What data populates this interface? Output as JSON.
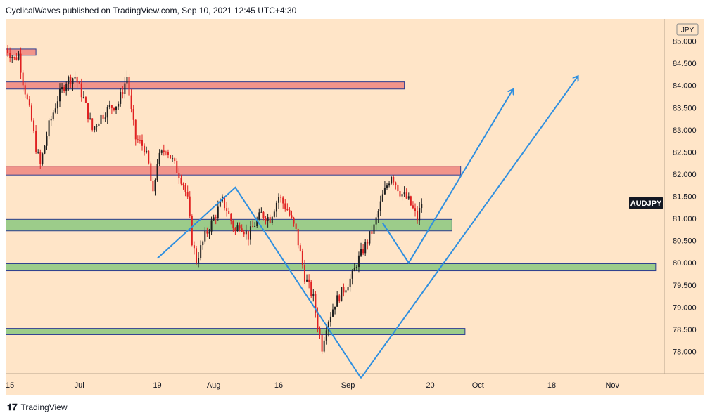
{
  "header": {
    "publisher_line": "CyclicalWaves published on TradingView.com, Sep 10, 2021 12:45 UTC+4:30"
  },
  "footer": {
    "brand": "TradingView",
    "logo": "tradingview-logo-icon"
  },
  "chart_data": {
    "type": "candlestick",
    "symbol_label": "AUDJPY",
    "currency_label": "JPY",
    "background_color": "#ffe5c8",
    "colors": {
      "up": "#1f1f1f",
      "down": "#e02020",
      "resistance": "#f1948a",
      "support": "#9ccc8a",
      "projection": "#2e8fe0"
    },
    "x_ticks": [
      "15",
      "Jul",
      "19",
      "Aug",
      "16",
      "Sep",
      "20",
      "Oct",
      "18",
      "Nov"
    ],
    "y_ticks": [
      "78.000",
      "78.500",
      "79.000",
      "79.500",
      "80.000",
      "80.500",
      "81.000",
      "81.500",
      "82.000",
      "82.500",
      "83.000",
      "83.500",
      "84.000",
      "84.500",
      "85.000"
    ],
    "ylim": [
      77.5,
      85.5
    ],
    "last_price": 81.35,
    "resistance_zones": [
      {
        "from": 83.92,
        "to": 84.08,
        "end": "Sep 14"
      },
      {
        "from": 81.98,
        "to": 82.18,
        "end": "Sep 27"
      },
      {
        "from": 84.68,
        "to": 84.82,
        "end": "Jun 21"
      }
    ],
    "support_zones": [
      {
        "from": 80.72,
        "to": 80.98,
        "end": "Sep 25"
      },
      {
        "from": 79.82,
        "to": 79.98,
        "end": "Nov 11"
      },
      {
        "from": 78.38,
        "to": 78.52,
        "end": "Sep 28"
      }
    ],
    "projection_paths": [
      {
        "points": [
          [
            "Jul 19",
            80.1
          ],
          [
            "Aug 6",
            81.7
          ],
          [
            "Sep 4",
            77.4
          ]
        ]
      },
      {
        "points": [
          [
            "Sep 9",
            80.9
          ],
          [
            "Sep 15",
            80.0
          ],
          [
            "Oct 9",
            83.9
          ]
        ],
        "arrow": true
      },
      {
        "points": [
          [
            "Sep 4",
            77.4
          ],
          [
            "Oct 24",
            84.2
          ]
        ],
        "arrow": true
      }
    ],
    "price_path": [
      [
        "Jun 14",
        84.85
      ],
      [
        "Jun 16",
        84.6
      ],
      [
        "Jun 17",
        84.7
      ],
      [
        "Jun 18",
        84.1
      ],
      [
        "Jun 20",
        83.2
      ],
      [
        "Jun 21",
        82.6
      ],
      [
        "Jun 22",
        82.2
      ],
      [
        "Jun 24",
        83.1
      ],
      [
        "Jun 26",
        83.7
      ],
      [
        "Jun 28",
        84.1
      ],
      [
        "Jun 30",
        84.2
      ],
      [
        "Jul 2",
        83.7
      ],
      [
        "Jul 4",
        83.0
      ],
      [
        "Jul 6",
        83.3
      ],
      [
        "Jul 8",
        83.5
      ],
      [
        "Jul 10",
        83.6
      ],
      [
        "Jul 12",
        84.2
      ],
      [
        "Jul 13",
        83.4
      ],
      [
        "Jul 14",
        82.8
      ],
      [
        "Jul 16",
        82.6
      ],
      [
        "Jul 17",
        82.2
      ],
      [
        "Jul 18",
        81.5
      ],
      [
        "Jul 19",
        82.3
      ],
      [
        "Jul 21",
        82.6
      ],
      [
        "Jul 23",
        82.2
      ],
      [
        "Jul 25",
        81.8
      ],
      [
        "Jul 26",
        81.4
      ],
      [
        "Jul 27",
        80.5
      ],
      [
        "Jul 28",
        80.05
      ],
      [
        "Jul 30",
        80.6
      ],
      [
        "Aug 1",
        81.0
      ],
      [
        "Aug 3",
        81.4
      ],
      [
        "Aug 4",
        81.2
      ],
      [
        "Aug 6",
        80.7
      ],
      [
        "Aug 7",
        80.9
      ],
      [
        "Aug 9",
        80.6
      ],
      [
        "Aug 10",
        80.8
      ],
      [
        "Aug 12",
        81.1
      ],
      [
        "Aug 14",
        81.0
      ],
      [
        "Aug 16",
        81.5
      ],
      [
        "Aug 18",
        81.2
      ],
      [
        "Aug 20",
        80.7
      ],
      [
        "Aug 21",
        80.2
      ],
      [
        "Aug 22",
        79.7
      ],
      [
        "Aug 24",
        79.2
      ],
      [
        "Aug 25",
        78.6
      ],
      [
        "Aug 26",
        78.1
      ],
      [
        "Aug 27",
        78.6
      ],
      [
        "Aug 29",
        79.1
      ],
      [
        "Aug 31",
        79.4
      ],
      [
        "Sep 2",
        79.7
      ],
      [
        "Sep 3",
        80.0
      ],
      [
        "Sep 5",
        80.4
      ],
      [
        "Sep 7",
        80.8
      ],
      [
        "Sep 9",
        81.5
      ],
      [
        "Sep 11",
        82.0
      ],
      [
        "Sep 13",
        81.6
      ],
      [
        "Sep 15",
        81.4
      ],
      [
        "Sep 17",
        81.0
      ],
      [
        "Sep 18",
        81.35
      ]
    ]
  }
}
